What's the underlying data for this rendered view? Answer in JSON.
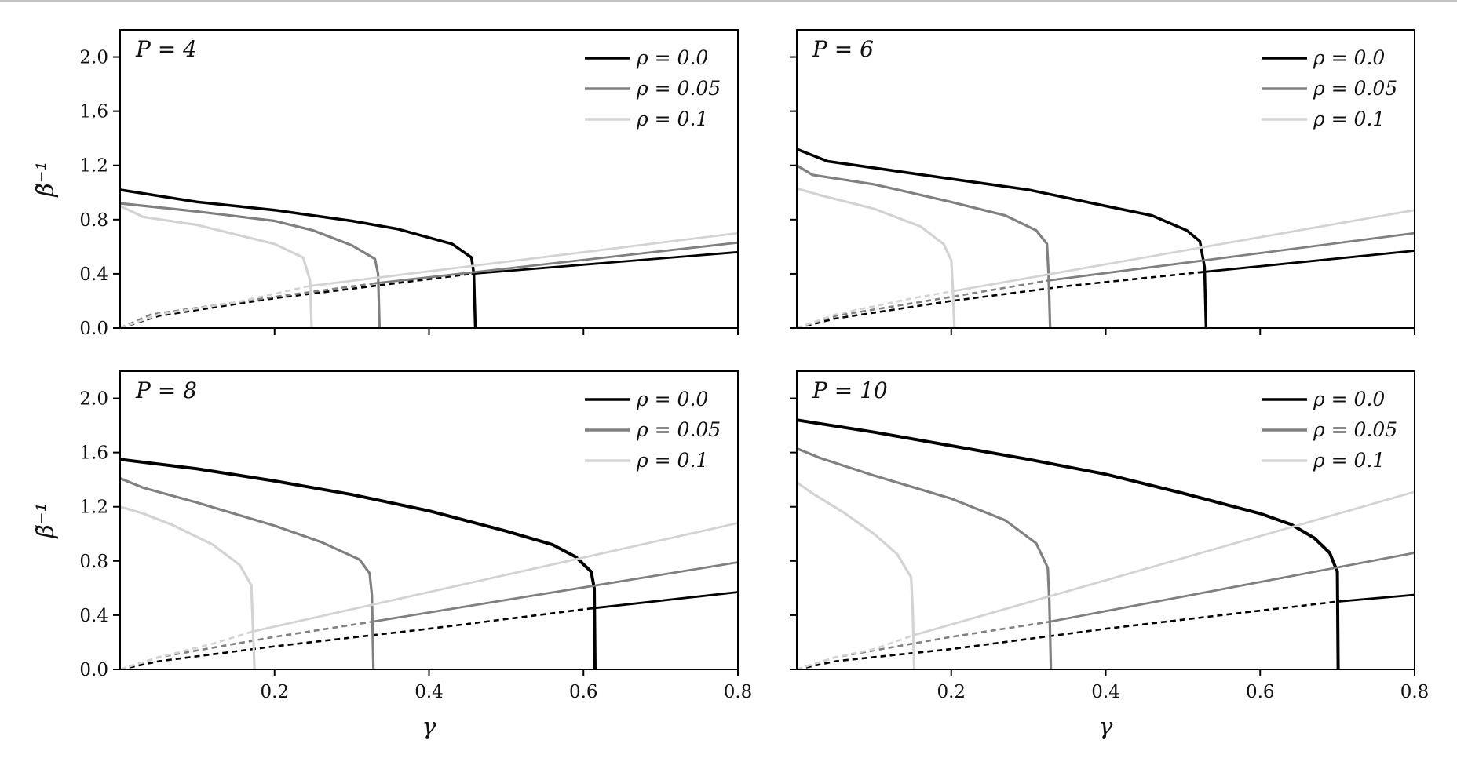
{
  "chart_data": [
    {
      "type": "line",
      "panel_label": "P = 4",
      "xlabel": "",
      "ylabel": "β̃⁻¹",
      "xlim": [
        0.0,
        0.8
      ],
      "ylim": [
        0.0,
        2.2
      ],
      "xticks": [
        0.2,
        0.4,
        0.6,
        0.8
      ],
      "xtick_labels": [
        "",
        "",
        "",
        ""
      ],
      "yticks": [
        0.0,
        0.4,
        0.8,
        1.2,
        1.6,
        2.0
      ],
      "ytick_labels": [
        "0.0",
        "0.4",
        "0.8",
        "1.2",
        "1.6",
        "2.0"
      ],
      "grid": false,
      "legend_position": "top-right",
      "series": [
        {
          "name": "ρ = 0.0",
          "color": "#000000",
          "weight": 3.5,
          "upper": [
            [
              0.0,
              1.02
            ],
            [
              0.1,
              0.93
            ],
            [
              0.2,
              0.87
            ],
            [
              0.3,
              0.79
            ],
            [
              0.36,
              0.73
            ],
            [
              0.43,
              0.62
            ],
            [
              0.455,
              0.52
            ],
            [
              0.458,
              0.4
            ],
            [
              0.46,
              0.0
            ]
          ],
          "lower_dashed": [
            [
              0.0,
              0.0
            ],
            [
              0.05,
              0.09
            ],
            [
              0.2,
              0.22
            ],
            [
              0.3,
              0.29
            ],
            [
              0.455,
              0.4
            ]
          ],
          "lower_solid": [
            [
              0.455,
              0.4
            ],
            [
              0.8,
              0.56
            ]
          ]
        },
        {
          "name": "ρ = 0.05",
          "color": "#808080",
          "weight": 3.2,
          "upper": [
            [
              0.0,
              0.92
            ],
            [
              0.1,
              0.86
            ],
            [
              0.2,
              0.79
            ],
            [
              0.25,
              0.72
            ],
            [
              0.3,
              0.61
            ],
            [
              0.33,
              0.51
            ],
            [
              0.334,
              0.4
            ],
            [
              0.336,
              0.0
            ]
          ],
          "lower_dashed": [
            [
              0.0,
              0.0
            ],
            [
              0.04,
              0.1
            ],
            [
              0.2,
              0.23
            ],
            [
              0.33,
              0.33
            ]
          ],
          "lower_solid": [
            [
              0.33,
              0.33
            ],
            [
              0.8,
              0.63
            ]
          ]
        },
        {
          "name": "ρ = 0.1",
          "color": "#d3d3d3",
          "weight": 3.2,
          "upper": [
            [
              0.0,
              0.9
            ],
            [
              0.03,
              0.82
            ],
            [
              0.1,
              0.76
            ],
            [
              0.2,
              0.62
            ],
            [
              0.237,
              0.52
            ],
            [
              0.246,
              0.35
            ],
            [
              0.248,
              0.0
            ]
          ],
          "lower_dashed": [
            [
              0.0,
              0.0
            ],
            [
              0.05,
              0.1
            ],
            [
              0.15,
              0.19
            ],
            [
              0.245,
              0.31
            ]
          ],
          "lower_solid": [
            [
              0.245,
              0.31
            ],
            [
              0.8,
              0.7
            ]
          ]
        }
      ]
    },
    {
      "type": "line",
      "panel_label": "P = 6",
      "xlabel": "",
      "ylabel": "",
      "xlim": [
        0.0,
        0.8
      ],
      "ylim": [
        0.0,
        2.2
      ],
      "xticks": [
        0.2,
        0.4,
        0.6,
        0.8
      ],
      "xtick_labels": [
        "",
        "",
        "",
        ""
      ],
      "yticks": [
        0.0,
        0.4,
        0.8,
        1.2,
        1.6,
        2.0
      ],
      "ytick_labels": [
        "",
        "",
        "",
        "",
        "",
        ""
      ],
      "grid": false,
      "legend_position": "top-right",
      "series": [
        {
          "name": "ρ = 0.0",
          "color": "#000000",
          "weight": 3.5,
          "upper": [
            [
              0.0,
              1.32
            ],
            [
              0.04,
              1.23
            ],
            [
              0.2,
              1.1
            ],
            [
              0.3,
              1.02
            ],
            [
              0.4,
              0.9
            ],
            [
              0.46,
              0.83
            ],
            [
              0.505,
              0.72
            ],
            [
              0.522,
              0.64
            ],
            [
              0.528,
              0.45
            ],
            [
              0.53,
              0.0
            ]
          ],
          "lower_dashed": [
            [
              0.0,
              0.0
            ],
            [
              0.05,
              0.07
            ],
            [
              0.2,
              0.2
            ],
            [
              0.35,
              0.31
            ],
            [
              0.52,
              0.41
            ]
          ],
          "lower_solid": [
            [
              0.52,
              0.41
            ],
            [
              0.8,
              0.57
            ]
          ]
        },
        {
          "name": "ρ = 0.05",
          "color": "#808080",
          "weight": 3.2,
          "upper": [
            [
              0.0,
              1.2
            ],
            [
              0.02,
              1.13
            ],
            [
              0.1,
              1.06
            ],
            [
              0.2,
              0.93
            ],
            [
              0.27,
              0.83
            ],
            [
              0.31,
              0.72
            ],
            [
              0.324,
              0.62
            ],
            [
              0.326,
              0.4
            ],
            [
              0.328,
              0.0
            ]
          ],
          "lower_dashed": [
            [
              0.0,
              0.0
            ],
            [
              0.05,
              0.09
            ],
            [
              0.2,
              0.23
            ],
            [
              0.325,
              0.35
            ]
          ],
          "lower_solid": [
            [
              0.325,
              0.35
            ],
            [
              0.8,
              0.7
            ]
          ]
        },
        {
          "name": "ρ = 0.1",
          "color": "#d3d3d3",
          "weight": 3.2,
          "upper": [
            [
              0.0,
              1.03
            ],
            [
              0.03,
              0.98
            ],
            [
              0.1,
              0.88
            ],
            [
              0.16,
              0.75
            ],
            [
              0.19,
              0.62
            ],
            [
              0.2,
              0.5
            ],
            [
              0.202,
              0.3
            ],
            [
              0.204,
              0.0
            ]
          ],
          "lower_dashed": [
            [
              0.0,
              0.0
            ],
            [
              0.05,
              0.1
            ],
            [
              0.15,
              0.22
            ],
            [
              0.2,
              0.27
            ]
          ],
          "lower_solid": [
            [
              0.2,
              0.27
            ],
            [
              0.8,
              0.87
            ]
          ]
        }
      ]
    },
    {
      "type": "line",
      "panel_label": "P = 8",
      "xlabel": "γ",
      "ylabel": "β̃⁻¹",
      "xlim": [
        0.0,
        0.8
      ],
      "ylim": [
        0.0,
        2.2
      ],
      "xticks": [
        0.2,
        0.4,
        0.6,
        0.8
      ],
      "xtick_labels": [
        "0.2",
        "0.4",
        "0.6",
        "0.8"
      ],
      "yticks": [
        0.0,
        0.4,
        0.8,
        1.2,
        1.6,
        2.0
      ],
      "ytick_labels": [
        "0.0",
        "0.4",
        "0.8",
        "1.2",
        "1.6",
        "2.0"
      ],
      "grid": false,
      "legend_position": "top-right",
      "series": [
        {
          "name": "ρ = 0.0",
          "color": "#000000",
          "weight": 4,
          "upper": [
            [
              0.0,
              1.55
            ],
            [
              0.1,
              1.48
            ],
            [
              0.2,
              1.39
            ],
            [
              0.3,
              1.29
            ],
            [
              0.4,
              1.17
            ],
            [
              0.5,
              1.02
            ],
            [
              0.56,
              0.92
            ],
            [
              0.59,
              0.83
            ],
            [
              0.61,
              0.72
            ],
            [
              0.614,
              0.6
            ],
            [
              0.615,
              0.0
            ]
          ],
          "lower_dashed": [
            [
              0.0,
              0.0
            ],
            [
              0.05,
              0.06
            ],
            [
              0.2,
              0.17
            ],
            [
              0.4,
              0.3
            ],
            [
              0.61,
              0.45
            ]
          ],
          "lower_solid": [
            [
              0.61,
              0.45
            ],
            [
              0.8,
              0.57
            ]
          ]
        },
        {
          "name": "ρ = 0.05",
          "color": "#808080",
          "weight": 3.2,
          "upper": [
            [
              0.0,
              1.41
            ],
            [
              0.03,
              1.34
            ],
            [
              0.1,
              1.23
            ],
            [
              0.2,
              1.06
            ],
            [
              0.26,
              0.94
            ],
            [
              0.31,
              0.81
            ],
            [
              0.323,
              0.71
            ],
            [
              0.326,
              0.55
            ],
            [
              0.328,
              0.0
            ]
          ],
          "lower_dashed": [
            [
              0.0,
              0.0
            ],
            [
              0.05,
              0.09
            ],
            [
              0.2,
              0.24
            ],
            [
              0.325,
              0.35
            ]
          ],
          "lower_solid": [
            [
              0.325,
              0.35
            ],
            [
              0.8,
              0.79
            ]
          ]
        },
        {
          "name": "ρ = 0.1",
          "color": "#d3d3d3",
          "weight": 3.2,
          "upper": [
            [
              0.0,
              1.2
            ],
            [
              0.03,
              1.15
            ],
            [
              0.07,
              1.06
            ],
            [
              0.12,
              0.92
            ],
            [
              0.155,
              0.77
            ],
            [
              0.17,
              0.62
            ],
            [
              0.172,
              0.3
            ],
            [
              0.174,
              0.0
            ]
          ],
          "lower_dashed": [
            [
              0.0,
              0.0
            ],
            [
              0.05,
              0.09
            ],
            [
              0.12,
              0.19
            ],
            [
              0.172,
              0.28
            ]
          ],
          "lower_solid": [
            [
              0.172,
              0.28
            ],
            [
              0.8,
              1.08
            ]
          ]
        }
      ]
    },
    {
      "type": "line",
      "panel_label": "P = 10",
      "xlabel": "γ",
      "ylabel": "",
      "xlim": [
        0.0,
        0.8
      ],
      "ylim": [
        0.0,
        2.2
      ],
      "xticks": [
        0.2,
        0.4,
        0.6,
        0.8
      ],
      "xtick_labels": [
        "0.2",
        "0.4",
        "0.6",
        "0.8"
      ],
      "yticks": [
        0.0,
        0.4,
        0.8,
        1.2,
        1.6,
        2.0
      ],
      "ytick_labels": [
        "",
        "",
        "",
        "",
        "",
        ""
      ],
      "grid": false,
      "legend_position": "top-right",
      "series": [
        {
          "name": "ρ = 0.0",
          "color": "#000000",
          "weight": 4,
          "upper": [
            [
              0.0,
              1.84
            ],
            [
              0.1,
              1.75
            ],
            [
              0.2,
              1.65
            ],
            [
              0.3,
              1.55
            ],
            [
              0.4,
              1.44
            ],
            [
              0.5,
              1.3
            ],
            [
              0.6,
              1.15
            ],
            [
              0.64,
              1.07
            ],
            [
              0.67,
              0.97
            ],
            [
              0.69,
              0.86
            ],
            [
              0.7,
              0.72
            ],
            [
              0.701,
              0.0
            ]
          ],
          "lower_dashed": [
            [
              0.0,
              0.0
            ],
            [
              0.05,
              0.06
            ],
            [
              0.2,
              0.15
            ],
            [
              0.4,
              0.3
            ],
            [
              0.7,
              0.5
            ]
          ],
          "lower_solid": [
            [
              0.7,
              0.5
            ],
            [
              0.8,
              0.55
            ]
          ]
        },
        {
          "name": "ρ = 0.05",
          "color": "#808080",
          "weight": 3.2,
          "upper": [
            [
              0.0,
              1.63
            ],
            [
              0.03,
              1.56
            ],
            [
              0.1,
              1.43
            ],
            [
              0.2,
              1.26
            ],
            [
              0.27,
              1.1
            ],
            [
              0.31,
              0.93
            ],
            [
              0.325,
              0.75
            ],
            [
              0.327,
              0.5
            ],
            [
              0.329,
              0.0
            ]
          ],
          "lower_dashed": [
            [
              0.0,
              0.0
            ],
            [
              0.05,
              0.09
            ],
            [
              0.2,
              0.24
            ],
            [
              0.326,
              0.35
            ]
          ],
          "lower_solid": [
            [
              0.326,
              0.35
            ],
            [
              0.8,
              0.86
            ]
          ]
        },
        {
          "name": "ρ = 0.1",
          "color": "#d3d3d3",
          "weight": 3.2,
          "upper": [
            [
              0.0,
              1.38
            ],
            [
              0.02,
              1.3
            ],
            [
              0.06,
              1.16
            ],
            [
              0.1,
              1.0
            ],
            [
              0.13,
              0.85
            ],
            [
              0.148,
              0.68
            ],
            [
              0.15,
              0.45
            ],
            [
              0.152,
              0.0
            ]
          ],
          "lower_dashed": [
            [
              0.0,
              0.0
            ],
            [
              0.05,
              0.09
            ],
            [
              0.1,
              0.15
            ],
            [
              0.15,
              0.25
            ]
          ],
          "lower_solid": [
            [
              0.15,
              0.25
            ],
            [
              0.8,
              1.31
            ]
          ]
        }
      ]
    }
  ]
}
